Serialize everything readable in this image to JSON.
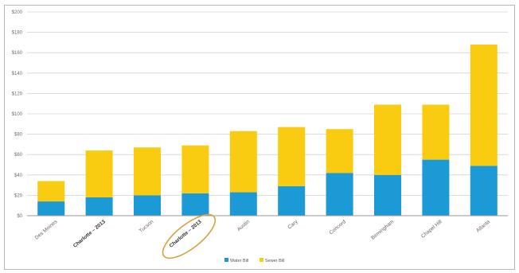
{
  "chart_data": {
    "type": "bar",
    "stacked": true,
    "title": "",
    "xlabel": "",
    "ylabel": "",
    "ylim": [
      0,
      200
    ],
    "yticks": [
      {
        "value": 0,
        "label": "$0"
      },
      {
        "value": 20,
        "label": "$20"
      },
      {
        "value": 40,
        "label": "$40"
      },
      {
        "value": 60,
        "label": "$60"
      },
      {
        "value": 80,
        "label": "$80"
      },
      {
        "value": 100,
        "label": "$100"
      },
      {
        "value": 120,
        "label": "$120"
      },
      {
        "value": 140,
        "label": "$140"
      },
      {
        "value": 160,
        "label": "$160"
      },
      {
        "value": 180,
        "label": "$180"
      },
      {
        "value": 200,
        "label": "$200"
      }
    ],
    "grid": true,
    "legend_position": "bottom",
    "categories": [
      "Des Moines",
      "Charlotte – 2013",
      "Tucson",
      "Charlotte – 2013",
      "Austin",
      "Cary",
      "Concord",
      "Birmingham",
      "Chapel Hill",
      "Atlanta"
    ],
    "bold_categories": [
      1,
      3
    ],
    "highlighted_category": 3,
    "highlight_color": "#d6a23d",
    "series": [
      {
        "name": "Water Bill",
        "color": "#1b9ad6",
        "values": [
          14,
          18,
          20,
          22,
          23,
          29,
          42,
          40,
          55,
          49
        ]
      },
      {
        "name": "Sewer Bill",
        "color": "#f9cc12",
        "values": [
          20,
          46,
          47,
          47,
          60,
          58,
          43,
          69,
          54,
          119
        ]
      }
    ]
  }
}
